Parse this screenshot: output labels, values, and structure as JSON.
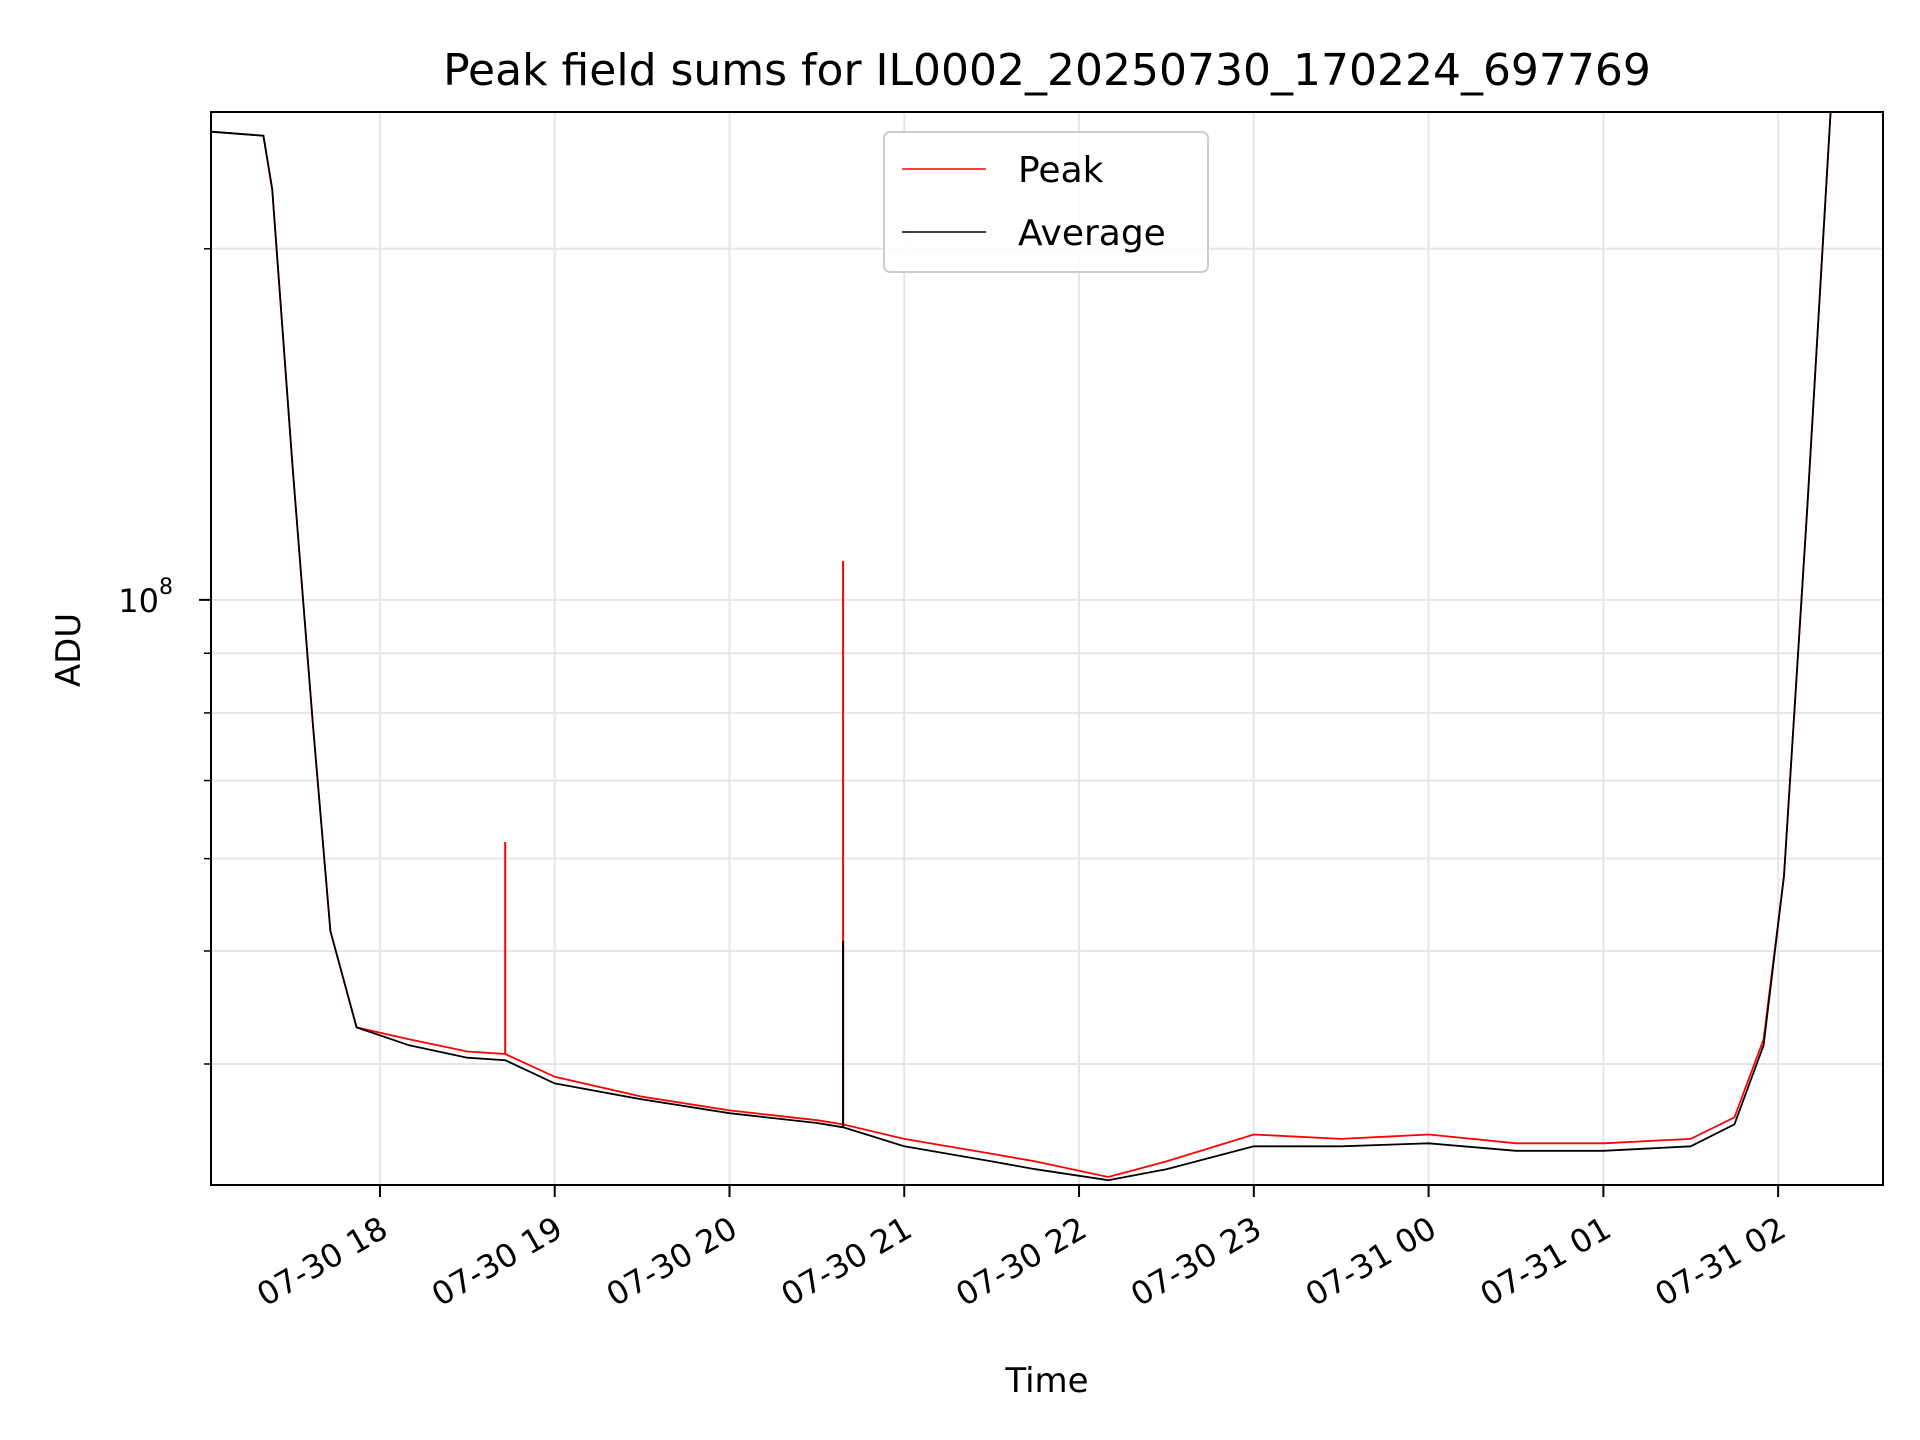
{
  "chart_data": {
    "type": "line",
    "title": "Peak field sums for IL0002_20250730_170224_697769",
    "xlabel": "Time",
    "ylabel": "ADU",
    "yscale": "log",
    "ylim": [
      31500000,
      262000000
    ],
    "xlim": [
      "2025-07-30 17:02",
      "2025-07-31 02:36"
    ],
    "grid": true,
    "legend_position": "top-center",
    "x_ticks": [
      "07-30 18",
      "07-30 19",
      "07-30 20",
      "07-30 21",
      "07-30 22",
      "07-30 23",
      "07-31 00",
      "07-31 01",
      "07-31 02"
    ],
    "y_ticks": [
      {
        "value": 100000000,
        "label_base": "10",
        "label_exp": "8"
      }
    ],
    "series": [
      {
        "name": "Peak",
        "color": "#ff0000",
        "x": [
          "2025-07-30 17:02",
          "2025-07-30 17:20",
          "2025-07-30 17:23",
          "2025-07-30 17:30",
          "2025-07-30 17:37",
          "2025-07-30 17:43",
          "2025-07-30 17:52",
          "2025-07-30 18:10",
          "2025-07-30 18:30",
          "2025-07-30 18:43",
          "2025-07-30 19:00",
          "2025-07-30 19:30",
          "2025-07-30 20:00",
          "2025-07-30 20:30",
          "2025-07-30 20:39",
          "2025-07-30 21:00",
          "2025-07-30 21:30",
          "2025-07-30 21:45",
          "2025-07-30 22:10",
          "2025-07-30 22:30",
          "2025-07-30 23:00",
          "2025-07-30 23:30",
          "2025-07-31 00:00",
          "2025-07-31 00:30",
          "2025-07-31 01:00",
          "2025-07-31 01:30",
          "2025-07-31 01:45",
          "2025-07-31 01:55",
          "2025-07-31 02:02",
          "2025-07-31 02:10",
          "2025-07-31 02:18"
        ],
        "values": [
          252000000,
          250000000,
          225000000,
          130000000,
          78000000,
          52000000,
          43000000,
          42000000,
          41000000,
          40800000,
          39000000,
          37500000,
          36500000,
          35800000,
          35500000,
          34500000,
          33500000,
          33000000,
          32000000,
          33000000,
          34800000,
          34500000,
          34800000,
          34200000,
          34200000,
          34500000,
          36000000,
          42000000,
          58000000,
          120000000,
          262000000
        ],
        "spikes": [
          {
            "x": "2025-07-30 18:43",
            "value": 62000000
          },
          {
            "x": "2025-07-30 20:39",
            "value": 108000000
          }
        ]
      },
      {
        "name": "Average",
        "color": "#000000",
        "x": [
          "2025-07-30 17:02",
          "2025-07-30 17:20",
          "2025-07-30 17:23",
          "2025-07-30 17:30",
          "2025-07-30 17:37",
          "2025-07-30 17:43",
          "2025-07-30 17:52",
          "2025-07-30 18:10",
          "2025-07-30 18:30",
          "2025-07-30 18:43",
          "2025-07-30 19:00",
          "2025-07-30 19:30",
          "2025-07-30 20:00",
          "2025-07-30 20:30",
          "2025-07-30 20:39",
          "2025-07-30 21:00",
          "2025-07-30 21:30",
          "2025-07-30 21:45",
          "2025-07-30 22:10",
          "2025-07-30 22:30",
          "2025-07-30 23:00",
          "2025-07-30 23:30",
          "2025-07-31 00:00",
          "2025-07-31 00:30",
          "2025-07-31 01:00",
          "2025-07-31 01:30",
          "2025-07-31 01:45",
          "2025-07-31 01:55",
          "2025-07-31 02:02",
          "2025-07-31 02:10",
          "2025-07-31 02:18"
        ],
        "values": [
          252000000,
          250000000,
          225000000,
          130000000,
          78000000,
          52000000,
          43000000,
          41500000,
          40500000,
          40300000,
          38500000,
          37300000,
          36300000,
          35600000,
          35300000,
          34000000,
          33000000,
          32500000,
          31800000,
          32500000,
          34000000,
          34000000,
          34200000,
          33700000,
          33700000,
          34000000,
          35500000,
          41500000,
          58000000,
          120000000,
          262000000
        ],
        "spikes": [
          {
            "x": "2025-07-30 20:39",
            "value": 51000000
          }
        ]
      }
    ]
  }
}
